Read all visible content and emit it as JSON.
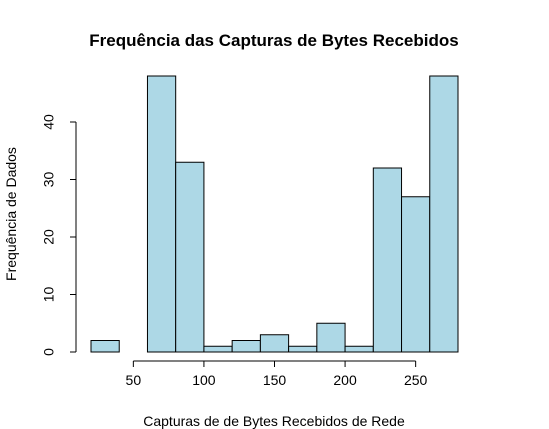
{
  "chart_data": {
    "type": "bar",
    "title": "Frequência das Capturas de Bytes Recebidos",
    "xlabel": "Capturas de de Bytes Recebidos de Rede",
    "ylabel": "Frequência de Dados",
    "bins": [
      {
        "x0": 20,
        "x1": 40,
        "count": 2
      },
      {
        "x0": 40,
        "x1": 60,
        "count": 0
      },
      {
        "x0": 60,
        "x1": 80,
        "count": 48
      },
      {
        "x0": 80,
        "x1": 100,
        "count": 33
      },
      {
        "x0": 100,
        "x1": 120,
        "count": 1
      },
      {
        "x0": 120,
        "x1": 140,
        "count": 2
      },
      {
        "x0": 140,
        "x1": 160,
        "count": 3
      },
      {
        "x0": 160,
        "x1": 180,
        "count": 1
      },
      {
        "x0": 180,
        "x1": 200,
        "count": 5
      },
      {
        "x0": 200,
        "x1": 220,
        "count": 1
      },
      {
        "x0": 220,
        "x1": 240,
        "count": 32
      },
      {
        "x0": 240,
        "x1": 260,
        "count": 27
      },
      {
        "x0": 260,
        "x1": 280,
        "count": 48
      }
    ],
    "xlim": [
      20,
      280
    ],
    "ylim": [
      0,
      48
    ],
    "xticks": [
      50,
      100,
      150,
      200,
      250
    ],
    "yticks": [
      0,
      10,
      20,
      30,
      40
    ],
    "bar_color": "#ADD8E6",
    "grid": false,
    "legend": "none"
  }
}
